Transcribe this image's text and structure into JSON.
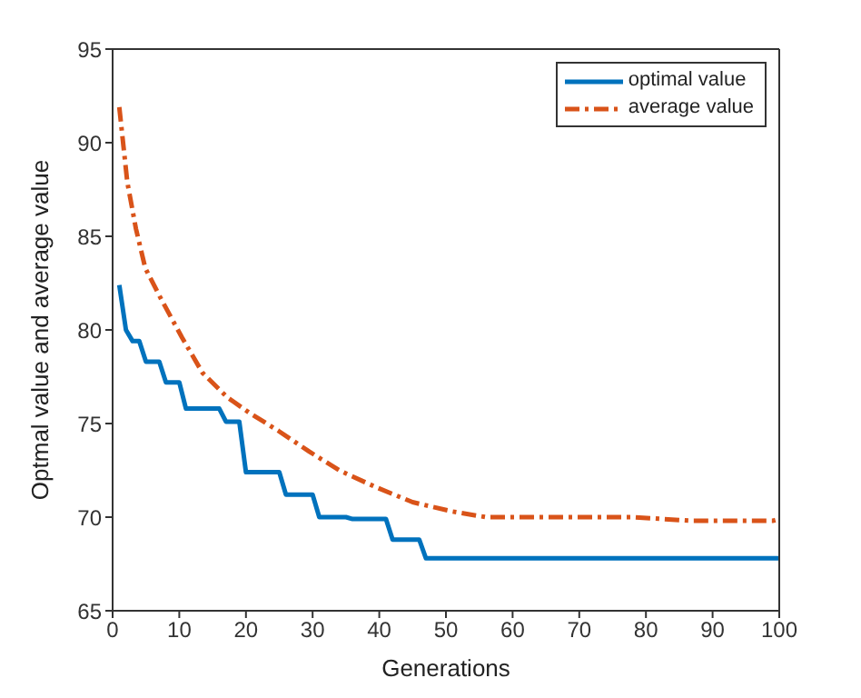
{
  "chart_data": {
    "type": "line",
    "xlabel": "Generations",
    "ylabel": "Optmal value and average value",
    "xlim": [
      0,
      100
    ],
    "xticks": [
      0,
      10,
      20,
      30,
      40,
      50,
      60,
      70,
      80,
      90,
      100
    ],
    "ylim": [
      65,
      95
    ],
    "yticks": [
      65,
      70,
      75,
      80,
      85,
      90,
      95
    ],
    "grid": false,
    "legend": "top right",
    "marker": "none",
    "series": [
      {
        "name": "optimal value",
        "color": "#0072bd",
        "line_style": "solid",
        "x": [
          1,
          2,
          3,
          4,
          5,
          7,
          8,
          10,
          11,
          16,
          17,
          19,
          20,
          25,
          26,
          30,
          31,
          35,
          36,
          41,
          42,
          46,
          47,
          100
        ],
        "values": [
          82.4,
          80.0,
          79.4,
          79.4,
          78.3,
          78.3,
          77.2,
          77.2,
          75.8,
          75.8,
          75.1,
          75.1,
          72.4,
          72.4,
          71.2,
          71.2,
          70.0,
          70.0,
          69.9,
          69.9,
          68.8,
          68.8,
          67.8,
          67.8
        ]
      },
      {
        "name": "average value",
        "color": "#d95319",
        "line_style": "dashed",
        "x": [
          1,
          2.2,
          3.5,
          4.9,
          7.2,
          10.4,
          13.5,
          17.2,
          20.4,
          24.9,
          29.5,
          34,
          39.5,
          45,
          51,
          56,
          64,
          78,
          87,
          99,
          100
        ],
        "values": [
          91.9,
          87.9,
          85.4,
          83.3,
          81.7,
          79.6,
          77.7,
          76.4,
          75.6,
          74.6,
          73.5,
          72.5,
          71.6,
          70.8,
          70.3,
          70.0,
          70.0,
          70.0,
          69.8,
          69.8,
          69.9
        ]
      }
    ]
  }
}
